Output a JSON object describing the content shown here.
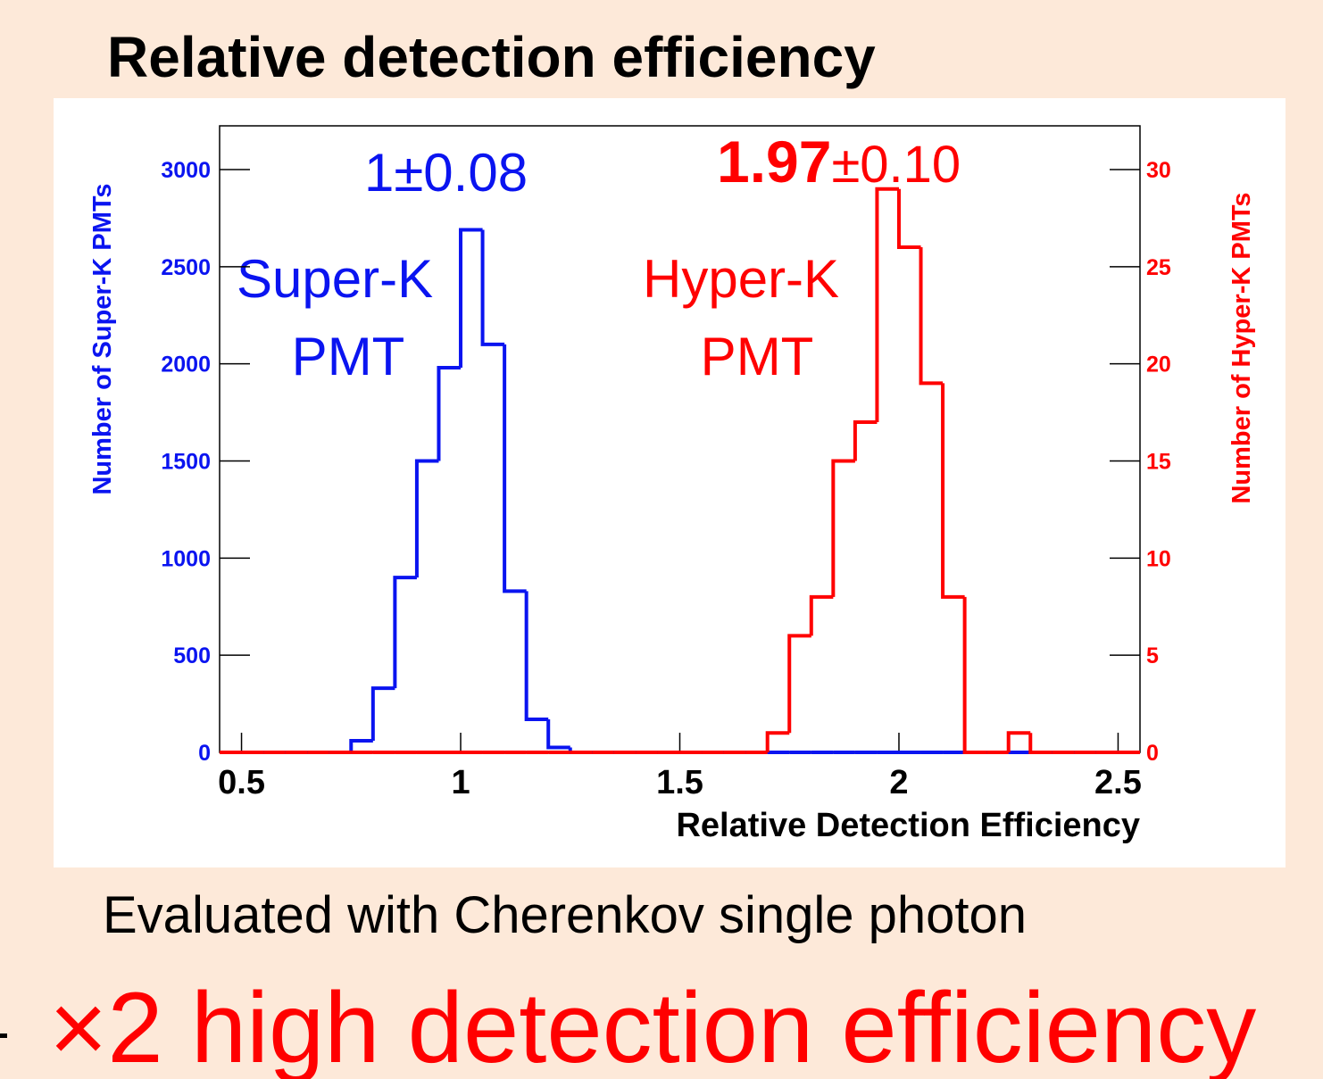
{
  "slide": {
    "title": "Relative detection efficiency",
    "note": "Evaluated with Cherenkov single photon",
    "conclusion": "×2 high detection efficiency"
  },
  "chart_data": {
    "type": "histogram",
    "xlabel": "Relative Detection Efficiency",
    "ylabel": "Number of Super-K PMTs",
    "y2label": "Number of Hyper-K PMTs",
    "bins": [
      0.45,
      0.5,
      0.55,
      0.6,
      0.65,
      0.7,
      0.75,
      0.8,
      0.85,
      0.9,
      0.95,
      1.0,
      1.05,
      1.1,
      1.15,
      1.2,
      1.25,
      1.3,
      1.35,
      1.4,
      1.45,
      1.5,
      1.55,
      1.6,
      1.65,
      1.7,
      1.75,
      1.8,
      1.85,
      1.9,
      1.95,
      2.0,
      2.05,
      2.1,
      2.15,
      2.2,
      2.25,
      2.3,
      2.35,
      2.4,
      2.45,
      2.5,
      2.55
    ],
    "series": [
      {
        "name": "Super-K PMT",
        "color": "#0a14f0",
        "axis": "y",
        "values": [
          0,
          0,
          0,
          0,
          0,
          0,
          60,
          330,
          900,
          1500,
          1980,
          2690,
          2100,
          830,
          170,
          25,
          0,
          0,
          0,
          0,
          0,
          0,
          0,
          0,
          0,
          0,
          0,
          0,
          0,
          0,
          0,
          0,
          0,
          0,
          0,
          0,
          0,
          0,
          0,
          0,
          0,
          0
        ]
      },
      {
        "name": "Hyper-K PMT",
        "color": "#ff0000",
        "axis": "y2",
        "values": [
          0,
          0,
          0,
          0,
          0,
          0,
          0,
          0,
          0,
          0,
          0,
          0,
          0,
          0,
          0,
          0,
          0,
          0,
          0,
          0,
          0,
          0,
          0,
          0,
          0,
          1,
          6,
          8,
          15,
          17,
          29,
          26,
          19,
          8,
          0,
          0,
          1,
          0,
          0,
          0,
          0,
          0
        ]
      }
    ],
    "xlim": [
      0.45,
      2.55
    ],
    "xticks": [
      0.5,
      1,
      1.5,
      2,
      2.5
    ],
    "ylim": [
      0,
      3225
    ],
    "yticks": [
      0,
      500,
      1000,
      1500,
      2000,
      2500,
      3000
    ],
    "y2lim": [
      0,
      32.25
    ],
    "y2ticks": [
      0,
      5,
      10,
      15,
      20,
      25,
      30
    ],
    "annotations": {
      "superk_efficiency": "1±0.08",
      "hyperk_value": "1.97",
      "hyperk_error": "±0.10",
      "superk_label_1": "Super-K",
      "superk_label_2": "PMT",
      "hyperk_label_1": "Hyper-K",
      "hyperk_label_2": "PMT"
    }
  }
}
